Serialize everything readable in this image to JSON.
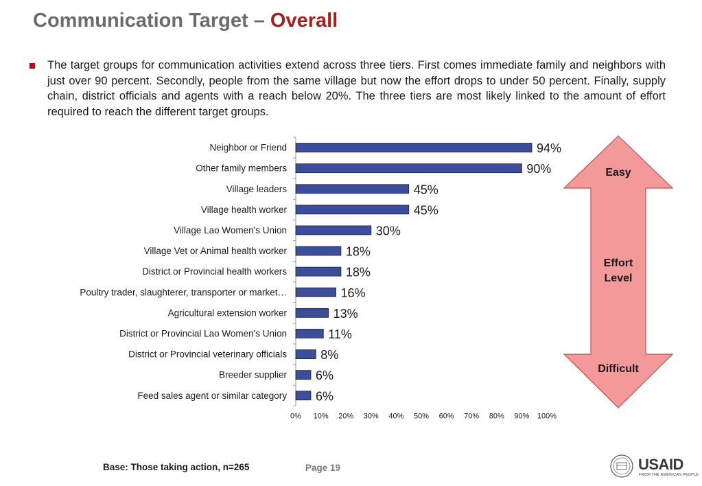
{
  "header": {
    "title_main": "Communication Target – ",
    "title_accent": "Overall"
  },
  "body": {
    "paragraph": "The target groups for communication activities extend across three tiers. First comes immediate family and neighbors with just over 90 percent. Secondly, people from the same village but now the effort drops to under 50 percent. Finally, supply chain, district officials and agents with a reach below 20%. The three tiers are most likely linked to the amount of effort required to reach the different target groups."
  },
  "chart_data": {
    "type": "bar",
    "orientation": "horizontal",
    "categories": [
      "Neighbor or Friend",
      "Other family members",
      "Village leaders",
      "Village health worker",
      "Village Lao Women's Union",
      "Village Vet or Animal health worker",
      "District or Provincial health workers",
      "Poultry trader, slaughterer, transporter or market…",
      "Agricultural extension worker",
      "District or Provincial Lao Women's Union",
      "District or Provincial veterinary officials",
      "Breeder supplier",
      "Feed sales agent or similar category"
    ],
    "values": [
      94,
      90,
      45,
      45,
      30,
      18,
      18,
      16,
      13,
      11,
      8,
      6,
      6
    ],
    "data_labels": [
      "94%",
      "90%",
      "45%",
      "45%",
      "30%",
      "18%",
      "18%",
      "16%",
      "13%",
      "11%",
      "8%",
      "6%",
      "6%"
    ],
    "xlim": [
      0,
      100
    ],
    "xticks": [
      "0%",
      "10%",
      "20%",
      "30%",
      "40%",
      "50%",
      "60%",
      "70%",
      "80%",
      "90%",
      "100%"
    ],
    "bar_color": "#3b4e9b",
    "grid": false
  },
  "effort_arrow": {
    "top_label": "Easy",
    "middle_label_line1": "Effort",
    "middle_label_line2": "Level",
    "bottom_label": "Difficult",
    "fill_color": "#f4999a",
    "stroke_color": "#c0504d"
  },
  "footer": {
    "base": "Base: Those taking action, n=265",
    "page": "Page 19",
    "logo_text": "USAID",
    "logo_sub": "FROM THE AMERICAN PEOPLE"
  }
}
